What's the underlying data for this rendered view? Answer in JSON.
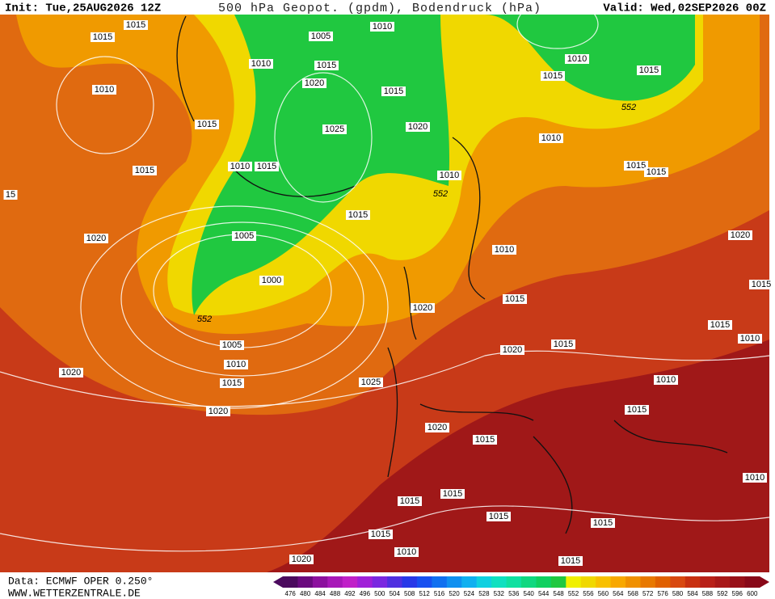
{
  "header": {
    "init": "Init: Tue,25AUG2026 12Z",
    "title": "500 hPa Geopot. (gpdm), Bodendruck (hPa)",
    "valid": "Valid: Wed,02SEP2026 00Z"
  },
  "contour_labels": [
    "1015",
    "1015",
    "1005",
    "1010",
    "1010",
    "1015",
    "1020",
    "1015",
    "1010",
    "1015",
    "1025",
    "1020",
    "1010",
    "1015",
    "1015",
    "15",
    "1015",
    "1020",
    "1005",
    "1000",
    "1010",
    "1015",
    "1015",
    "1010",
    "1015",
    "1015",
    "1010",
    "1010",
    "1020",
    "1015",
    "1015",
    "1020",
    "1015",
    "1010",
    "1015",
    "1020",
    "1005",
    "1010",
    "1015",
    "1020",
    "1025",
    "1010",
    "1020",
    "1015",
    "1020",
    "1015",
    "1015",
    "1010",
    "1015",
    "1015",
    "1015",
    "1015",
    "1010",
    "1015",
    "1020"
  ],
  "geopotential_labels": [
    "552",
    "552",
    "552"
  ],
  "legend": {
    "ticks": [
      476,
      480,
      484,
      488,
      492,
      496,
      500,
      504,
      508,
      512,
      516,
      520,
      524,
      528,
      532,
      536,
      540,
      544,
      548,
      552,
      556,
      560,
      564,
      568,
      572,
      576,
      580,
      584,
      588,
      592,
      596,
      600
    ],
    "colors": [
      "#4b0a5e",
      "#6a0a7e",
      "#8c109e",
      "#a818b8",
      "#c020c8",
      "#a020d8",
      "#7a28e0",
      "#5030e0",
      "#2838e8",
      "#1850f0",
      "#1070f0",
      "#1090f0",
      "#10b0f0",
      "#10d0e0",
      "#10e0c0",
      "#10e0a0",
      "#10d880",
      "#10d060",
      "#20c840",
      "#f0f000",
      "#f0d800",
      "#f8c000",
      "#f8a800",
      "#f09000",
      "#e87800",
      "#e06000",
      "#d84810",
      "#c83010",
      "#b82018",
      "#a81818",
      "#981018",
      "#880818"
    ]
  },
  "footer": {
    "source": "Data: ECMWF OPER 0.250°",
    "site": "WWW.WETTERZENTRALE.DE"
  }
}
